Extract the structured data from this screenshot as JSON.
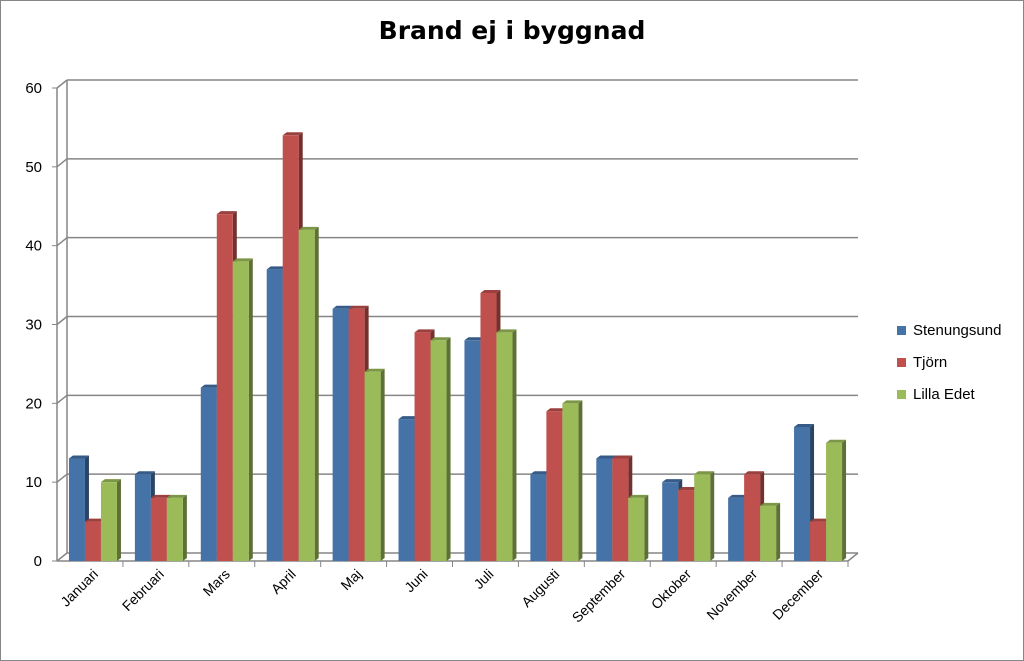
{
  "chart_data": {
    "type": "bar",
    "title": "Brand ej i byggnad",
    "xlabel": "",
    "ylabel": "",
    "ylim": [
      0,
      60
    ],
    "yticks": [
      0,
      10,
      20,
      30,
      40,
      50,
      60
    ],
    "grid": true,
    "legend_position": "right",
    "categories": [
      "Januari",
      "Februari",
      "Mars",
      "April",
      "Maj",
      "Juni",
      "Juli",
      "Augusti",
      "September",
      "Oktober",
      "November",
      "December"
    ],
    "series": [
      {
        "name": "Stenungsund",
        "color": "#4572A7",
        "values": [
          13,
          11,
          22,
          37,
          32,
          18,
          28,
          11,
          13,
          10,
          8,
          17
        ]
      },
      {
        "name": "Tjörn",
        "color": "#C0504D",
        "values": [
          5,
          8,
          44,
          54,
          32,
          29,
          34,
          19,
          13,
          9,
          11,
          5
        ]
      },
      {
        "name": "Lilla Edet",
        "color": "#9BBB59",
        "values": [
          10,
          8,
          38,
          42,
          24,
          28,
          29,
          20,
          8,
          11,
          7,
          15
        ]
      }
    ]
  }
}
